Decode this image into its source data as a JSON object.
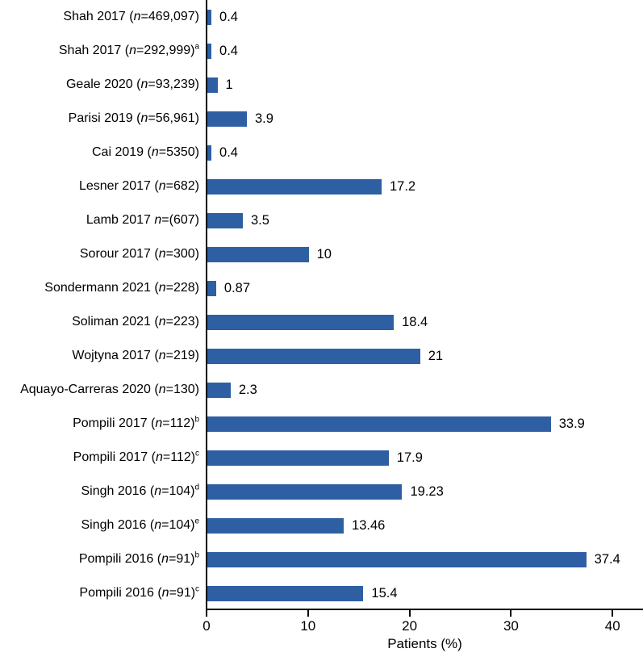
{
  "chart_data": {
    "type": "bar",
    "orientation": "horizontal",
    "title": "",
    "xlabel": "Patients (%)",
    "x_ticks": [
      0,
      10,
      20,
      30,
      40
    ],
    "x_max": 43,
    "grid": false,
    "legend": "none",
    "bar_color": "#2E5FA3",
    "axis_color": "#000000",
    "categories": [
      "Shah 2017 (n=469,097)",
      "Shah 2017 (n=292,999)ᵃ",
      "Geale 2020 (n=93,239)",
      "Parisi 2019 (n=56,961)",
      "Cai 2019 (n=5350)",
      "Lesner 2017 (n=682)",
      "Lamb 2017 n=(607)",
      "Sorour 2017 (n=300)",
      "Sondermann 2021 (n=228)",
      "Soliman 2021 (n=223)",
      "Wojtyna 2017 (n=219)",
      "Aquayo-Carreras 2020 (n=130)",
      "Pompili 2017 (n=112)ᵇ",
      "Pompili 2017 (n=112)ᶜ",
      "Singh 2016 (n=104)ᵈ",
      "Singh 2016 (n=104)ᵉ",
      "Pompili 2016 (n=91)ᵇ",
      "Pompili 2016 (n=91)ᶜ"
    ],
    "values": [
      0.4,
      0.4,
      1,
      3.9,
      0.4,
      17.2,
      3.5,
      10,
      0.87,
      18.4,
      21,
      2.3,
      33.9,
      17.9,
      19.23,
      13.46,
      37.4,
      15.4
    ],
    "value_labels": [
      "0.4",
      "0.4",
      "1",
      "3.9",
      "0.4",
      "17.2",
      "3.5",
      "10",
      "0.87",
      "18.4",
      "21",
      "2.3",
      "33.9",
      "17.9",
      "19.23",
      "13.46",
      "37.4",
      "15.4"
    ],
    "label_parts": [
      {
        "pre": "Shah 2017 (",
        "n": "n",
        "post": "=469,097)",
        "sup": ""
      },
      {
        "pre": "Shah 2017 (",
        "n": "n",
        "post": "=292,999)",
        "sup": "a"
      },
      {
        "pre": "Geale 2020 (",
        "n": "n",
        "post": "=93,239)",
        "sup": ""
      },
      {
        "pre": "Parisi 2019 (",
        "n": "n",
        "post": "=56,961)",
        "sup": ""
      },
      {
        "pre": "Cai 2019 (",
        "n": "n",
        "post": "=5350)",
        "sup": ""
      },
      {
        "pre": "Lesner 2017 (",
        "n": "n",
        "post": "=682)",
        "sup": ""
      },
      {
        "pre": "Lamb 2017 ",
        "n": "n",
        "post": "=(607)",
        "sup": ""
      },
      {
        "pre": "Sorour 2017 (",
        "n": "n",
        "post": "=300)",
        "sup": ""
      },
      {
        "pre": "Sondermann 2021 (",
        "n": "n",
        "post": "=228)",
        "sup": ""
      },
      {
        "pre": "Soliman 2021 (",
        "n": "n",
        "post": "=223)",
        "sup": ""
      },
      {
        "pre": "Wojtyna 2017 (",
        "n": "n",
        "post": "=219)",
        "sup": ""
      },
      {
        "pre": "Aquayo-Carreras 2020 (",
        "n": "n",
        "post": "=130)",
        "sup": ""
      },
      {
        "pre": "Pompili 2017 (",
        "n": "n",
        "post": "=112)",
        "sup": "b"
      },
      {
        "pre": "Pompili 2017 (",
        "n": "n",
        "post": "=112)",
        "sup": "c"
      },
      {
        "pre": "Singh 2016 (",
        "n": "n",
        "post": "=104)",
        "sup": "d"
      },
      {
        "pre": "Singh 2016 (",
        "n": "n",
        "post": "=104)",
        "sup": "e"
      },
      {
        "pre": "Pompili 2016 (",
        "n": "n",
        "post": "=91)",
        "sup": "b"
      },
      {
        "pre": "Pompili 2016 (",
        "n": "n",
        "post": "=91)",
        "sup": "c"
      }
    ]
  }
}
